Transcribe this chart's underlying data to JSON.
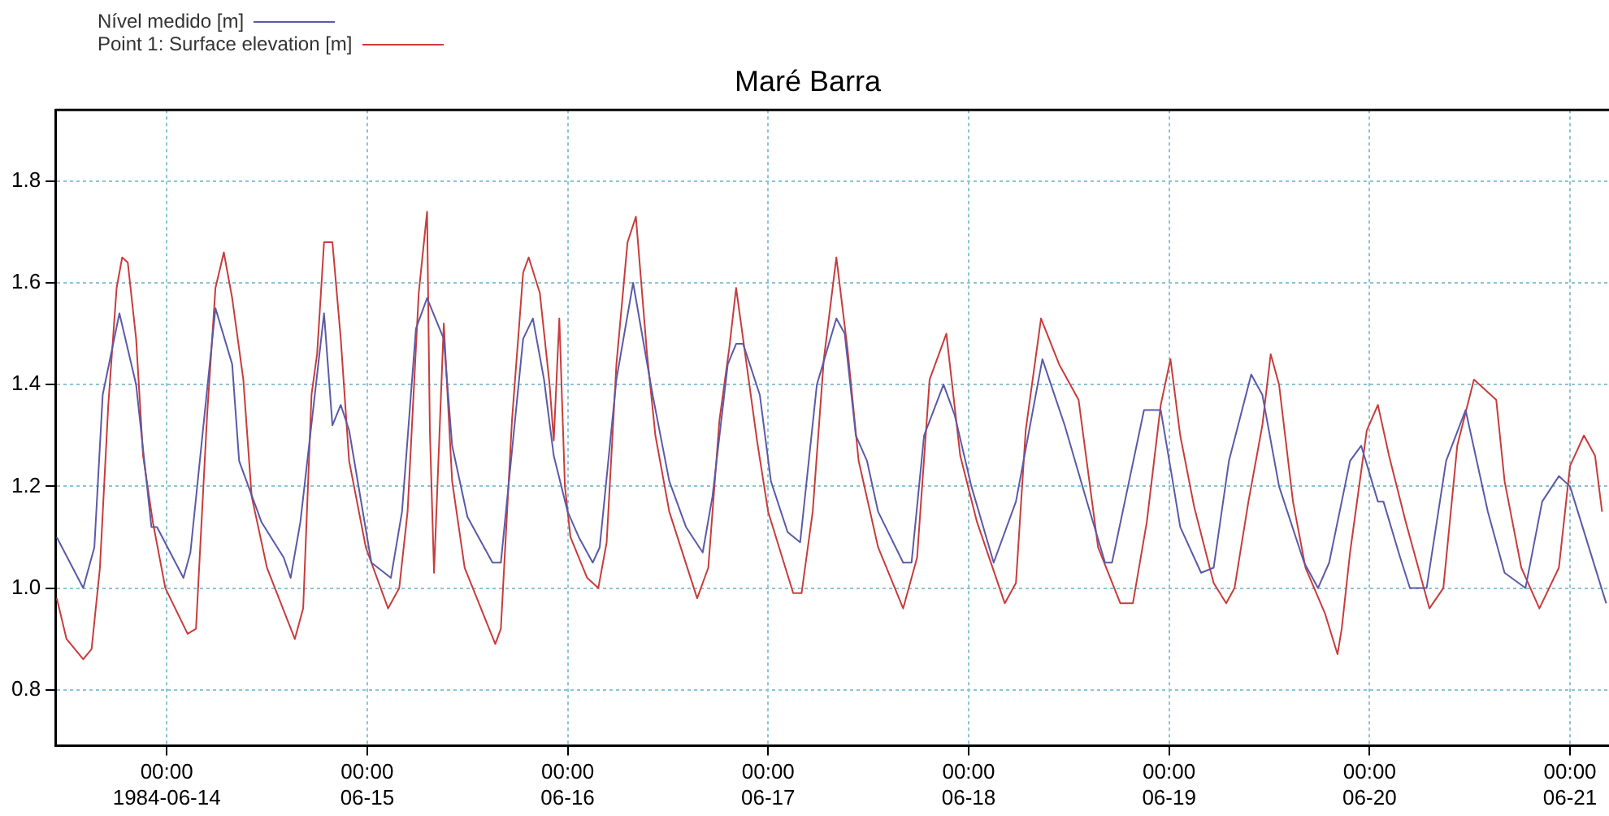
{
  "chart_data": {
    "type": "line",
    "title": "Maré Barra",
    "legend": "top left",
    "grid": true,
    "xlim": [
      "1984-06-13T10:40",
      "1984-06-21T04:40"
    ],
    "xticks": [
      {
        "value": "1984-06-14T00:00",
        "label": "00:00\n1984-06-14"
      },
      {
        "value": "1984-06-15T00:00",
        "label": "00:00\n06-15"
      },
      {
        "value": "1984-06-16T00:00",
        "label": "00:00\n06-16"
      },
      {
        "value": "1984-06-17T00:00",
        "label": "00:00\n06-17"
      },
      {
        "value": "1984-06-18T00:00",
        "label": "00:00\n06-18"
      },
      {
        "value": "1984-06-19T00:00",
        "label": "00:00\n06-19"
      },
      {
        "value": "1984-06-20T00:00",
        "label": "00:00\n06-20"
      },
      {
        "value": "1984-06-21T00:00",
        "label": "00:00\n06-21"
      }
    ],
    "ylim": [
      0.69,
      1.94
    ],
    "yticks": [
      0.8,
      {
        "value": 1,
        "label": "1.0"
      },
      1.2,
      1.4,
      1.6,
      1.8
    ],
    "series": [
      {
        "name": "Nível medido [m]",
        "color": "#5a5aa8",
        "x": [
          "1984-06-13T10:50",
          "1984-06-13T14:00",
          "1984-06-13T15:20",
          "1984-06-13T16:20",
          "1984-06-13T18:20",
          "1984-06-13T20:20",
          "1984-06-13T22:10",
          "1984-06-13T22:50",
          "1984-06-14T02:00",
          "1984-06-14T02:50",
          "1984-06-14T05:50",
          "1984-06-14T07:50",
          "1984-06-14T08:40",
          "1984-06-14T11:20",
          "1984-06-14T14:00",
          "1984-06-14T14:50",
          "1984-06-14T16:00",
          "1984-06-14T18:50",
          "1984-06-14T19:50",
          "1984-06-14T20:50",
          "1984-06-14T21:50",
          "1984-06-15T00:30",
          "1984-06-15T02:50",
          "1984-06-15T04:10",
          "1984-06-15T05:50",
          "1984-06-15T07:10",
          "1984-06-15T09:10",
          "1984-06-15T10:10",
          "1984-06-15T12:00",
          "1984-06-15T15:00",
          "1984-06-15T16:00",
          "1984-06-15T18:40",
          "1984-06-15T19:50",
          "1984-06-15T21:10",
          "1984-06-15T22:20",
          "1984-06-16T00:00",
          "1984-06-16T01:20",
          "1984-06-16T03:00",
          "1984-06-16T03:50",
          "1984-06-16T05:50",
          "1984-06-16T07:50",
          "1984-06-16T10:10",
          "1984-06-16T12:10",
          "1984-06-16T14:10",
          "1984-06-16T16:10",
          "1984-06-16T17:20",
          "1984-06-16T19:10",
          "1984-06-16T20:10",
          "1984-06-16T21:00",
          "1984-06-16T23:00",
          "1984-06-17T00:20",
          "1984-06-17T02:20",
          "1984-06-17T03:50",
          "1984-06-17T05:50",
          "1984-06-17T08:10",
          "1984-06-17T09:10",
          "1984-06-17T10:30",
          "1984-06-17T11:50",
          "1984-06-17T13:10",
          "1984-06-17T16:10",
          "1984-06-17T17:10",
          "1984-06-17T18:40",
          "1984-06-17T21:00",
          "1984-06-17T22:20",
          "1984-06-18T00:20",
          "1984-06-18T03:00",
          "1984-06-18T05:40",
          "1984-06-18T08:50",
          "1984-06-18T11:30",
          "1984-06-18T14:10",
          "1984-06-18T16:20",
          "1984-06-18T17:10",
          "1984-06-18T21:00",
          "1984-06-18T23:00",
          "1984-06-19T00:20",
          "1984-06-19T01:20",
          "1984-06-19T03:50",
          "1984-06-19T05:20",
          "1984-06-19T07:10",
          "1984-06-19T09:50",
          "1984-06-19T11:10",
          "1984-06-19T13:10",
          "1984-06-19T16:10",
          "1984-06-19T17:50",
          "1984-06-19T19:10",
          "1984-06-19T21:40",
          "1984-06-19T23:00",
          "1984-06-20T01:00",
          "1984-06-20T01:40",
          "1984-06-20T03:40",
          "1984-06-20T04:50",
          "1984-06-20T06:50",
          "1984-06-20T09:10",
          "1984-06-20T11:30",
          "1984-06-20T14:10",
          "1984-06-20T16:10",
          "1984-06-20T18:40",
          "1984-06-20T20:40",
          "1984-06-20T22:40",
          "1984-06-21T00:00",
          "1984-06-21T04:20"
        ],
        "values": [
          1.1,
          1.0,
          1.08,
          1.38,
          1.54,
          1.4,
          1.12,
          1.12,
          1.02,
          1.07,
          1.55,
          1.44,
          1.25,
          1.13,
          1.06,
          1.02,
          1.13,
          1.54,
          1.32,
          1.36,
          1.31,
          1.05,
          1.02,
          1.15,
          1.51,
          1.57,
          1.49,
          1.28,
          1.14,
          1.05,
          1.05,
          1.49,
          1.53,
          1.41,
          1.26,
          1.15,
          1.1,
          1.05,
          1.08,
          1.41,
          1.6,
          1.38,
          1.21,
          1.12,
          1.07,
          1.18,
          1.44,
          1.48,
          1.48,
          1.38,
          1.21,
          1.11,
          1.09,
          1.4,
          1.53,
          1.5,
          1.3,
          1.25,
          1.15,
          1.05,
          1.05,
          1.3,
          1.4,
          1.34,
          1.2,
          1.05,
          1.17,
          1.45,
          1.32,
          1.17,
          1.05,
          1.05,
          1.35,
          1.35,
          1.22,
          1.12,
          1.03,
          1.04,
          1.25,
          1.42,
          1.38,
          1.2,
          1.05,
          1.0,
          1.05,
          1.25,
          1.28,
          1.17,
          1.17,
          1.06,
          1.0,
          1.0,
          1.25,
          1.35,
          1.15,
          1.03,
          1.0,
          1.17,
          1.22,
          1.2,
          0.97
        ]
      },
      {
        "name": "Point 1: Surface elevation [m]",
        "color": "#c83c3c",
        "x": [
          "1984-06-13T10:50",
          "1984-06-13T12:00",
          "1984-06-13T14:00",
          "1984-06-13T15:00",
          "1984-06-13T16:00",
          "1984-06-13T17:00",
          "1984-06-13T18:00",
          "1984-06-13T18:40",
          "1984-06-13T19:20",
          "1984-06-13T20:20",
          "1984-06-13T21:10",
          "1984-06-13T22:20",
          "1984-06-13T23:50",
          "1984-06-14T02:30",
          "1984-06-14T03:30",
          "1984-06-14T04:50",
          "1984-06-14T05:50",
          "1984-06-14T06:50",
          "1984-06-14T07:50",
          "1984-06-14T09:10",
          "1984-06-14T10:10",
          "1984-06-14T12:00",
          "1984-06-14T15:20",
          "1984-06-14T16:20",
          "1984-06-14T17:20",
          "1984-06-14T18:00",
          "1984-06-14T18:50",
          "1984-06-14T19:50",
          "1984-06-14T20:50",
          "1984-06-14T21:50",
          "1984-06-14T23:50",
          "1984-06-15T02:30",
          "1984-06-15T03:50",
          "1984-06-15T04:50",
          "1984-06-15T06:10",
          "1984-06-15T07:10",
          "1984-06-15T07:30",
          "1984-06-15T08:00",
          "1984-06-15T08:20",
          "1984-06-15T09:10",
          "1984-06-15T10:10",
          "1984-06-15T11:40",
          "1984-06-15T15:20",
          "1984-06-15T16:00",
          "1984-06-15T17:20",
          "1984-06-15T18:40",
          "1984-06-15T19:20",
          "1984-06-15T20:40",
          "1984-06-15T21:50",
          "1984-06-15T22:20",
          "1984-06-15T23:00",
          "1984-06-15T23:40",
          "1984-06-16T00:20",
          "1984-06-16T02:20",
          "1984-06-16T03:40",
          "1984-06-16T04:40",
          "1984-06-16T05:50",
          "1984-06-16T07:10",
          "1984-06-16T08:10",
          "1984-06-16T09:30",
          "1984-06-16T10:30",
          "1984-06-16T12:10",
          "1984-06-16T15:30",
          "1984-06-16T16:50",
          "1984-06-16T18:10",
          "1984-06-16T19:20",
          "1984-06-16T20:10",
          "1984-06-16T21:20",
          "1984-06-16T22:40",
          "1984-06-17T00:00",
          "1984-06-17T03:00",
          "1984-06-17T04:00",
          "1984-06-17T05:20",
          "1984-06-17T06:40",
          "1984-06-17T08:10",
          "1984-06-17T09:30",
          "1984-06-17T10:50",
          "1984-06-17T13:10",
          "1984-06-17T16:10",
          "1984-06-17T17:50",
          "1984-06-17T19:20",
          "1984-06-17T21:20",
          "1984-06-17T23:00",
          "1984-06-18T01:00",
          "1984-06-18T04:20",
          "1984-06-18T05:40",
          "1984-06-18T06:50",
          "1984-06-18T08:40",
          "1984-06-18T10:50",
          "1984-06-18T13:10",
          "1984-06-18T15:30",
          "1984-06-18T18:10",
          "1984-06-18T19:40",
          "1984-06-18T21:20",
          "1984-06-18T23:00",
          "1984-06-19T00:10",
          "1984-06-19T01:20",
          "1984-06-19T03:00",
          "1984-06-19T05:20",
          "1984-06-19T06:50",
          "1984-06-19T07:50",
          "1984-06-19T09:30",
          "1984-06-19T11:10",
          "1984-06-19T12:10",
          "1984-06-19T13:10",
          "1984-06-19T14:50",
          "1984-06-19T16:20",
          "1984-06-19T18:40",
          "1984-06-19T20:10",
          "1984-06-19T20:40",
          "1984-06-19T21:40",
          "1984-06-19T23:40",
          "1984-06-20T01:00",
          "1984-06-20T02:20",
          "1984-06-20T04:20",
          "1984-06-20T07:10",
          "1984-06-20T08:50",
          "1984-06-20T10:30",
          "1984-06-20T12:30",
          "1984-06-20T15:10",
          "1984-06-20T16:10",
          "1984-06-20T18:10",
          "1984-06-20T20:20",
          "1984-06-20T22:40",
          "1984-06-21T00:00",
          "1984-06-21T01:40",
          "1984-06-21T03:00",
          "1984-06-21T03:50"
        ],
        "values": [
          0.98,
          0.9,
          0.86,
          0.88,
          1.04,
          1.36,
          1.59,
          1.65,
          1.64,
          1.49,
          1.26,
          1.13,
          1.0,
          0.91,
          0.92,
          1.34,
          1.59,
          1.66,
          1.57,
          1.41,
          1.18,
          1.04,
          0.9,
          0.96,
          1.38,
          1.46,
          1.68,
          1.68,
          1.49,
          1.25,
          1.08,
          0.96,
          1.0,
          1.15,
          1.58,
          1.74,
          1.31,
          1.03,
          1.17,
          1.52,
          1.21,
          1.04,
          0.89,
          0.92,
          1.33,
          1.62,
          1.65,
          1.58,
          1.4,
          1.29,
          1.53,
          1.2,
          1.1,
          1.02,
          1.0,
          1.09,
          1.44,
          1.68,
          1.73,
          1.46,
          1.3,
          1.15,
          0.98,
          1.04,
          1.33,
          1.47,
          1.59,
          1.45,
          1.29,
          1.15,
          0.99,
          0.99,
          1.15,
          1.45,
          1.65,
          1.47,
          1.25,
          1.08,
          0.96,
          1.06,
          1.41,
          1.5,
          1.26,
          1.13,
          0.97,
          1.01,
          1.31,
          1.53,
          1.44,
          1.37,
          1.08,
          0.97,
          0.97,
          1.13,
          1.36,
          1.45,
          1.3,
          1.16,
          1.01,
          0.97,
          1.0,
          1.17,
          1.32,
          1.46,
          1.4,
          1.17,
          1.04,
          0.95,
          0.87,
          0.92,
          1.07,
          1.31,
          1.36,
          1.26,
          1.13,
          0.96,
          1.0,
          1.28,
          1.41,
          1.37,
          1.21,
          1.04,
          0.96,
          1.04,
          1.24,
          1.3,
          1.26,
          1.15
        ]
      }
    ]
  }
}
